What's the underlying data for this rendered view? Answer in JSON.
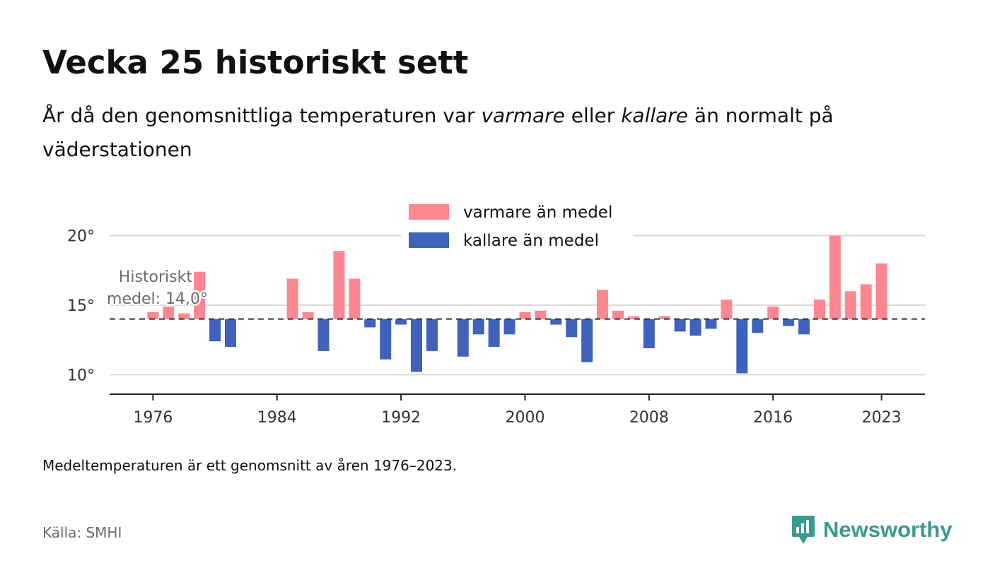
{
  "title": "Vecka 25 historiskt sett",
  "subtitle": {
    "part1": "År då den genomsnittliga temperaturen var ",
    "warm_word": "varmare",
    "part2": " eller ",
    "cold_word": "kallare",
    "part3": " än normalt på väderstationen"
  },
  "footnote": "Medeltemperaturen är ett genomsnitt av åren 1976–2023.",
  "source": "Källa: SMHI",
  "brand": "Newsworthy",
  "colors": {
    "warm": "#fd8791",
    "cold": "#4062bb",
    "grid": "#d9d9d9",
    "axis": "#222222",
    "mean_line": "#333333",
    "brand": "#3a9a8e"
  },
  "chart_data": {
    "type": "bar",
    "baseline": 14.0,
    "mean_label_line1": "Historiskt",
    "mean_label_line2": "medel: 14,0°",
    "legend": [
      {
        "name": "varmare än medel",
        "color": "#fd8791"
      },
      {
        "name": "kallare än medel",
        "color": "#4062bb"
      }
    ],
    "y_ticks": [
      {
        "value": 10,
        "label": "10°"
      },
      {
        "value": 15,
        "label": "15°"
      },
      {
        "value": 20,
        "label": "20°"
      }
    ],
    "x_ticks": [
      {
        "value": 1976,
        "label": "1976"
      },
      {
        "value": 1984,
        "label": "1984"
      },
      {
        "value": 1992,
        "label": "1992"
      },
      {
        "value": 2000,
        "label": "2000"
      },
      {
        "value": 2008,
        "label": "2008"
      },
      {
        "value": 2016,
        "label": "2016"
      },
      {
        "value": 2023,
        "label": "2023"
      }
    ],
    "xlim": [
      1973.2,
      2025.8
    ],
    "ylim": [
      8.6,
      21.7
    ],
    "years": [
      1976,
      1977,
      1978,
      1979,
      1980,
      1981,
      1982,
      1983,
      1984,
      1985,
      1986,
      1987,
      1988,
      1989,
      1990,
      1991,
      1992,
      1993,
      1994,
      1995,
      1996,
      1997,
      1998,
      1999,
      2000,
      2001,
      2002,
      2003,
      2004,
      2005,
      2006,
      2007,
      2008,
      2009,
      2010,
      2011,
      2012,
      2013,
      2014,
      2015,
      2016,
      2017,
      2018,
      2019,
      2020,
      2021,
      2022,
      2023
    ],
    "values": [
      14.5,
      14.9,
      14.4,
      17.4,
      12.4,
      12.0,
      null,
      null,
      null,
      16.9,
      14.5,
      11.7,
      18.9,
      16.9,
      13.4,
      11.1,
      13.6,
      10.2,
      11.7,
      null,
      11.3,
      12.9,
      12.0,
      12.9,
      14.5,
      14.6,
      13.6,
      12.7,
      10.9,
      16.1,
      14.6,
      14.2,
      11.9,
      14.2,
      13.1,
      12.8,
      13.3,
      15.4,
      10.1,
      13.0,
      14.9,
      13.5,
      12.9,
      15.4,
      20.0,
      16.0,
      16.5,
      18.0
    ]
  }
}
